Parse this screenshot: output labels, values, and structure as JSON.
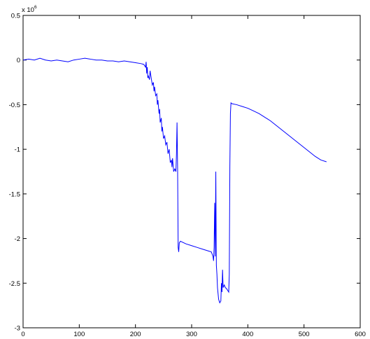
{
  "chart_data": {
    "type": "line",
    "title": "",
    "xlabel": "",
    "ylabel": "",
    "xlim": [
      0,
      600
    ],
    "ylim": [
      -3,
      0.5
    ],
    "y_exponent_label": {
      "base": "x 10",
      "power": "6"
    },
    "x_ticks": [
      0,
      100,
      200,
      300,
      400,
      500,
      600
    ],
    "x_tick_labels": [
      "0",
      "100",
      "200",
      "300",
      "400",
      "500",
      "600"
    ],
    "y_ticks": [
      0.5,
      0,
      -0.5,
      -1,
      -1.5,
      -2,
      -2.5,
      -3
    ],
    "y_tick_labels": [
      "0.5",
      "0",
      "-0.5",
      "-1",
      "-1.5",
      "-2",
      "-2.5",
      "-3"
    ],
    "grid": false,
    "box": true,
    "colors": {
      "line": "#0000ff",
      "axes": "#000000",
      "background": "#ffffff"
    },
    "series": [
      {
        "color": "#0000ff",
        "x": [
          0,
          10,
          20,
          30,
          40,
          50,
          60,
          70,
          80,
          90,
          100,
          110,
          120,
          130,
          140,
          150,
          160,
          170,
          180,
          190,
          200,
          210,
          215,
          218,
          219,
          220,
          221,
          222,
          223,
          225,
          226,
          228,
          230,
          232,
          233,
          234,
          236,
          238,
          239,
          240,
          242,
          243,
          244,
          246,
          247,
          248,
          250,
          252,
          254,
          256,
          258,
          260,
          262,
          264,
          265,
          266,
          268,
          270,
          272,
          273,
          274,
          275,
          276,
          277,
          278,
          280,
          290,
          300,
          310,
          320,
          330,
          335,
          338,
          339,
          340,
          341,
          342,
          343,
          344,
          345,
          346,
          348,
          350,
          352,
          353,
          354,
          355,
          356,
          358,
          360,
          362,
          364,
          366,
          367,
          368,
          369,
          370,
          372,
          380,
          390,
          400,
          410,
          420,
          430,
          440,
          450,
          460,
          470,
          480,
          490,
          500,
          510,
          520,
          530,
          540
        ],
        "y": [
          0.0,
          0.01,
          0.0,
          0.02,
          0.0,
          -0.01,
          0.0,
          -0.01,
          -0.02,
          0.0,
          0.01,
          0.02,
          0.01,
          0.0,
          0.0,
          -0.01,
          -0.01,
          -0.02,
          -0.01,
          -0.02,
          -0.03,
          -0.04,
          -0.05,
          -0.08,
          -0.02,
          -0.15,
          -0.08,
          -0.2,
          -0.18,
          -0.22,
          -0.12,
          -0.2,
          -0.28,
          -0.25,
          -0.35,
          -0.3,
          -0.4,
          -0.38,
          -0.5,
          -0.45,
          -0.6,
          -0.55,
          -0.7,
          -0.65,
          -0.8,
          -0.75,
          -0.88,
          -0.85,
          -0.95,
          -0.92,
          -1.05,
          -1.0,
          -1.15,
          -1.12,
          -1.2,
          -1.1,
          -1.25,
          -1.22,
          -1.25,
          -1.05,
          -0.7,
          -1.2,
          -2.1,
          -2.15,
          -2.05,
          -2.03,
          -2.06,
          -2.08,
          -2.1,
          -2.12,
          -2.14,
          -2.15,
          -2.2,
          -2.25,
          -2.1,
          -1.6,
          -2.2,
          -1.25,
          -2.3,
          -2.4,
          -2.55,
          -2.68,
          -2.72,
          -2.7,
          -2.5,
          -2.6,
          -2.35,
          -2.55,
          -2.52,
          -2.55,
          -2.56,
          -2.58,
          -2.6,
          -2.4,
          -1.2,
          -0.6,
          -0.48,
          -0.49,
          -0.5,
          -0.52,
          -0.54,
          -0.57,
          -0.6,
          -0.64,
          -0.68,
          -0.73,
          -0.78,
          -0.83,
          -0.88,
          -0.93,
          -0.98,
          -1.03,
          -1.08,
          -1.12,
          -1.14
        ]
      }
    ]
  }
}
